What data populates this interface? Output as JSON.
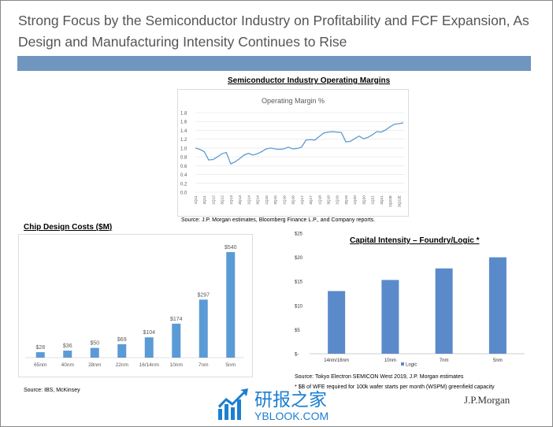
{
  "slide": {
    "title": "Strong Focus by the Semiconductor Industry on Profitability and FCF Expansion, As Design and Manufacturing Intensity Continues to Rise"
  },
  "colors": {
    "banner": "#7096bf",
    "series": "#5b9bd5",
    "capital": "#5b8acb"
  },
  "chart_data": [
    {
      "type": "line",
      "heading": "Semiconductor Industry Operating Margins",
      "title": "Operating Margin %",
      "ylim": [
        0,
        1.8
      ],
      "yticks": [
        "0.0",
        "0.2",
        "0.4",
        "0.6",
        "0.8",
        "1.0",
        "1.2",
        "1.4",
        "1.6",
        "1.8"
      ],
      "xticks": [
        "1Q11",
        "3Q11",
        "1Q12",
        "3Q12",
        "1Q13",
        "3Q13",
        "1Q14",
        "3Q14",
        "1Q15",
        "3Q15",
        "1Q16",
        "3Q16",
        "1Q17",
        "3Q17",
        "1Q18",
        "3Q18",
        "1Q19",
        "3Q19",
        "1Q20",
        "3Q20",
        "1Q21",
        "3Q21",
        "1Q22E",
        "3Q22E"
      ],
      "values": [
        1.0,
        0.97,
        0.92,
        0.73,
        0.74,
        0.8,
        0.87,
        0.9,
        0.64,
        0.69,
        0.76,
        0.84,
        0.88,
        0.84,
        0.87,
        0.92,
        0.98,
        1.0,
        0.98,
        0.97,
        0.98,
        1.02,
        0.98,
        0.99,
        1.02,
        1.18,
        1.19,
        1.18,
        1.26,
        1.34,
        1.36,
        1.37,
        1.36,
        1.35,
        1.14,
        1.15,
        1.21,
        1.27,
        1.21,
        1.24,
        1.3,
        1.37,
        1.36,
        1.41,
        1.48,
        1.54,
        1.55,
        1.57
      ],
      "grid": true,
      "source": "Source: J.P. Morgan estimates, Bloomberg Finance L.P., and Company reports."
    },
    {
      "type": "bar",
      "title": "Chip Design Costs ($M)",
      "categories": [
        "65nm",
        "40nm",
        "28nm",
        "22nm",
        "16/14nm",
        "10nm",
        "7nm",
        "5nm"
      ],
      "values": [
        28,
        36,
        50,
        69,
        104,
        174,
        297,
        540
      ],
      "labels": [
        "$28",
        "$36",
        "$50",
        "$69",
        "$104",
        "$174",
        "$297",
        "$540"
      ],
      "source": "Source:  IBS, McKinsey"
    },
    {
      "type": "bar",
      "title": "Capital Intensity – Foundry/Logic *",
      "categories": [
        "14nm/16nm",
        "10nm",
        "7nm",
        "5nm"
      ],
      "values": [
        13,
        15.3,
        17.7,
        20
      ],
      "ylim": [
        0,
        25
      ],
      "yticks": [
        "$-",
        "$5",
        "$10",
        "$15",
        "$20",
        "$25"
      ],
      "legend": "Logic",
      "legend_position": "bottom",
      "source": "Source:  Tokyo Electron SEMICON West 2019, J.P. Morgan estimates",
      "footnote": "* $B of WFE required for 100k wafer starts per month (WSPM) greenfield capacity"
    }
  ],
  "watermark": {
    "cn": "研报之家",
    "en": "YBLOOK.COM"
  },
  "brand": "J.P.Morgan"
}
